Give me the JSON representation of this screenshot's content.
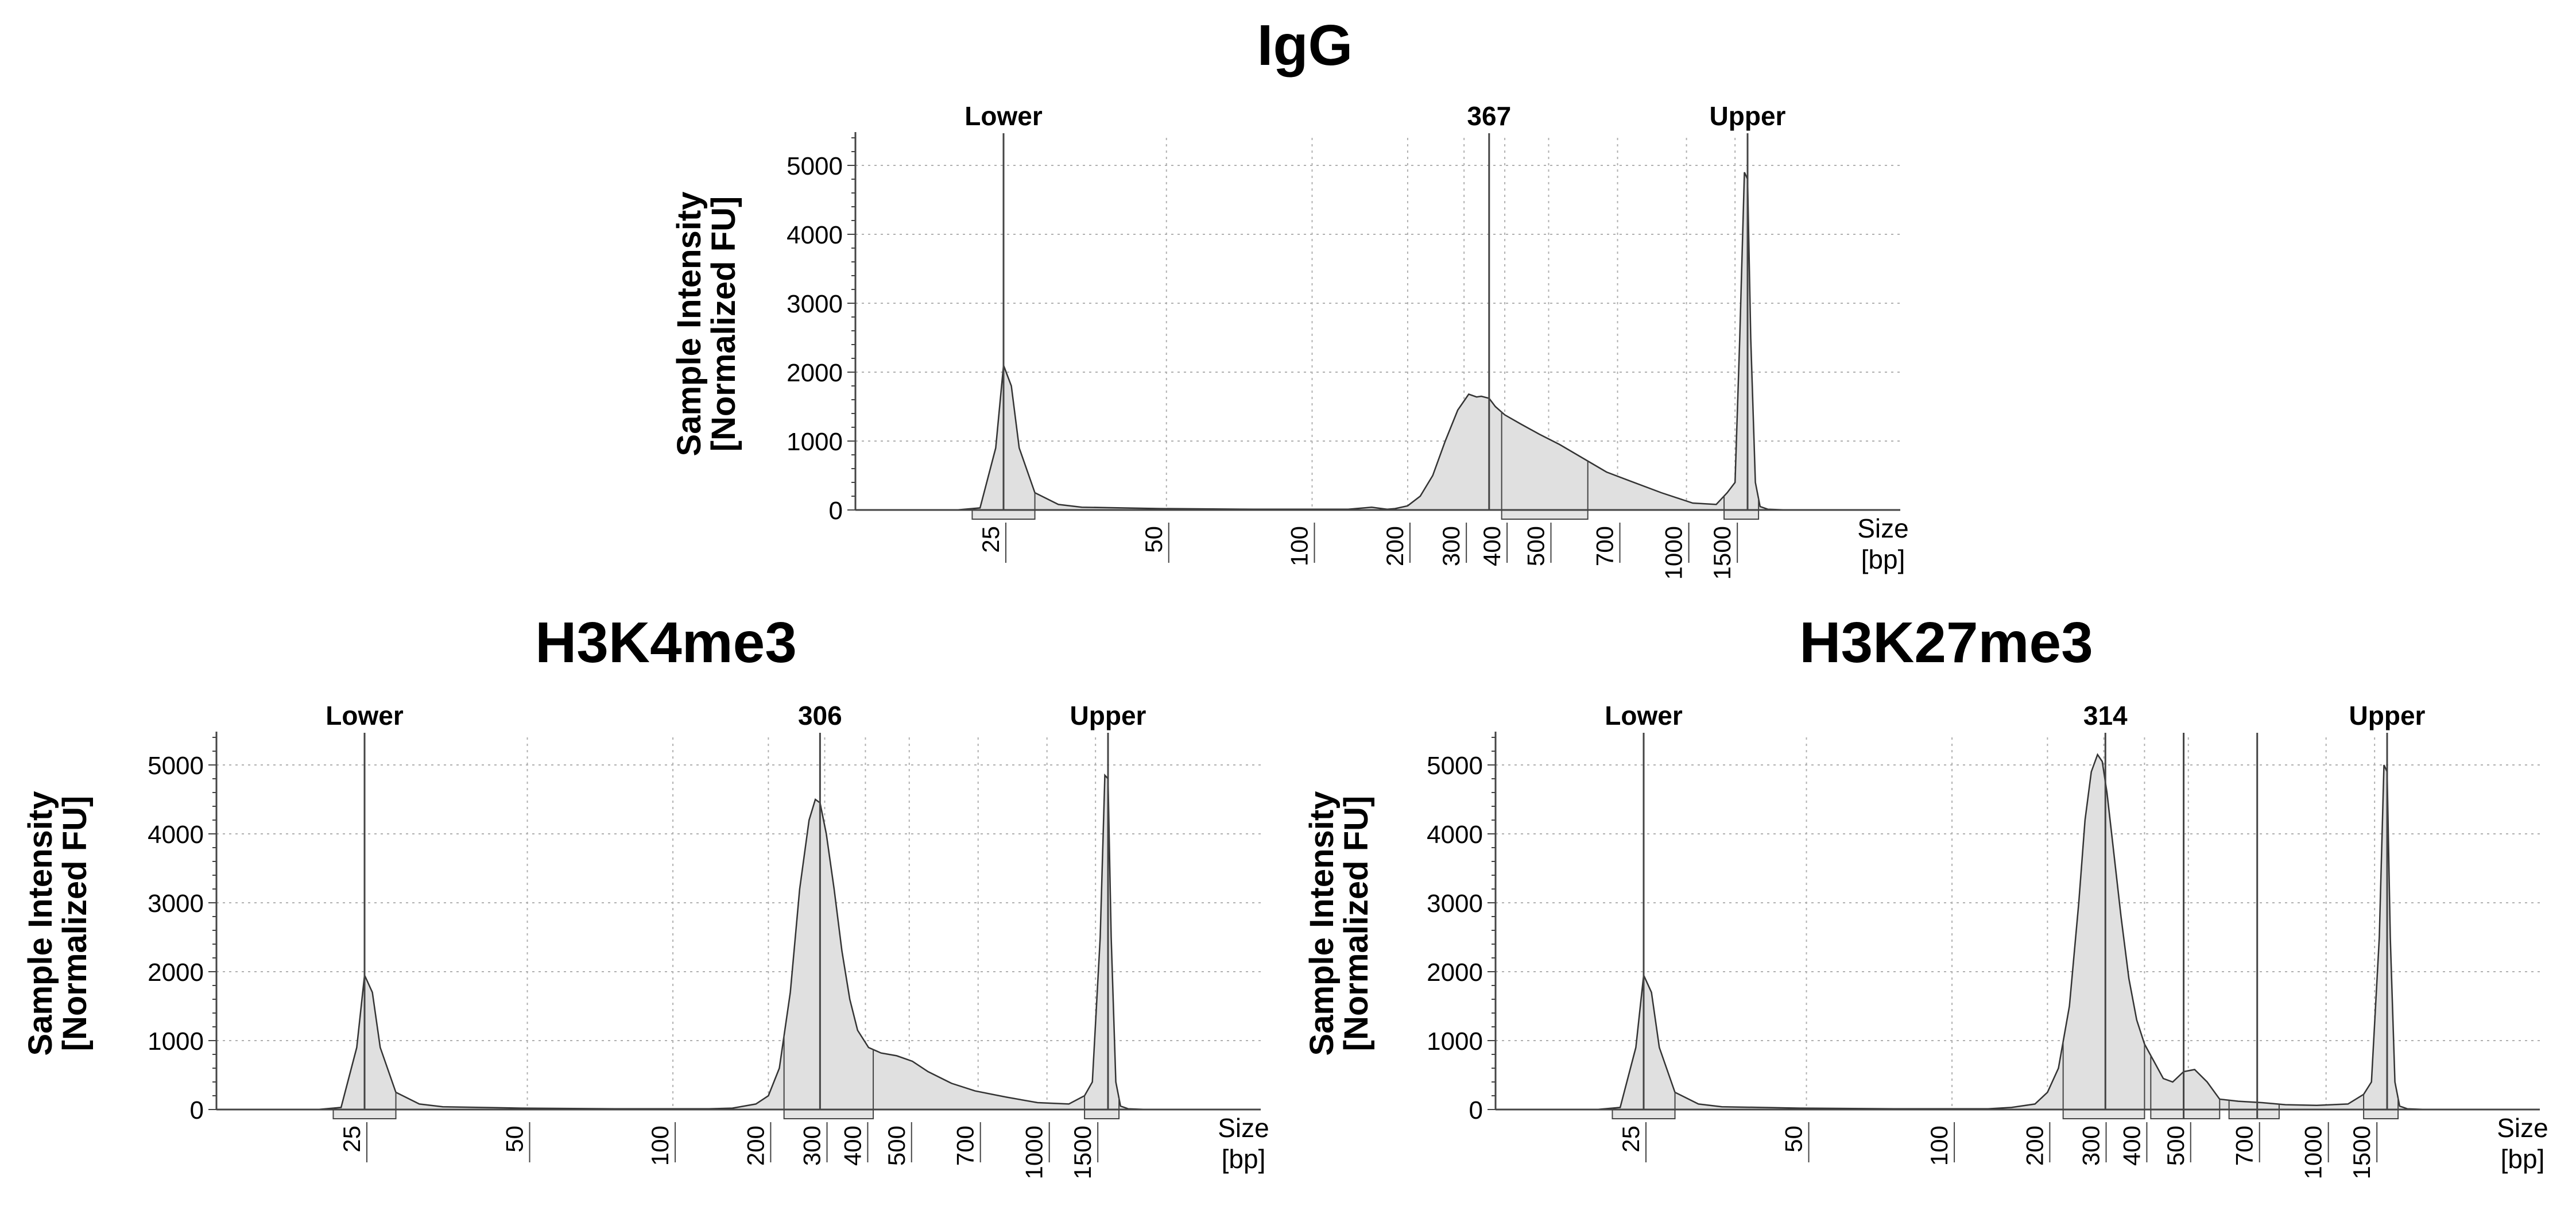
{
  "chart_data": [
    {
      "type": "area",
      "title": "IgG",
      "ylabel": [
        "Sample Intensity",
        "[Normalized FU]"
      ],
      "xlabel": [
        "Size",
        "[bp]"
      ],
      "ylim": [
        0,
        5400
      ],
      "yticks": [
        0,
        1000,
        2000,
        3000,
        4000,
        5000
      ],
      "xticks": [
        {
          "label": "25",
          "t": 0
        },
        {
          "label": "50",
          "t": 1.04
        },
        {
          "label": "100",
          "t": 1.97
        },
        {
          "label": "200",
          "t": 2.58
        },
        {
          "label": "300",
          "t": 2.94
        },
        {
          "label": "400",
          "t": 3.2
        },
        {
          "label": "500",
          "t": 3.48
        },
        {
          "label": "700",
          "t": 3.92
        },
        {
          "label": "1000",
          "t": 4.36
        },
        {
          "label": "1500",
          "t": 4.67
        }
      ],
      "peak_labels": [
        {
          "text": "Lower",
          "t": 0
        },
        {
          "text": "367",
          "t": 3.1
        },
        {
          "text": "Upper",
          "t": 4.75
        }
      ],
      "regions": [
        {
          "from": -0.2,
          "to": 0.2
        },
        {
          "from": 3.18,
          "to": 3.73
        },
        {
          "from": 4.6,
          "to": 4.82
        }
      ],
      "series": [
        {
          "x": [
            -0.8,
            -0.3,
            -0.15,
            -0.05,
            0,
            0.05,
            0.1,
            0.2,
            0.35,
            0.5,
            1.0,
            1.6,
            2.2,
            2.35,
            2.45,
            2.5,
            2.58,
            2.66,
            2.74,
            2.82,
            2.9,
            2.97,
            3.02,
            3.05,
            3.1,
            3.14,
            3.2,
            3.3,
            3.42,
            3.55,
            3.7,
            3.85,
            4.0,
            4.2,
            4.4,
            4.55,
            4.62,
            4.67,
            4.7,
            4.73,
            4.75,
            4.77,
            4.8,
            4.83,
            4.88,
            5.0,
            5.3
          ],
          "y": [
            0,
            0,
            30,
            900,
            2100,
            1800,
            900,
            250,
            80,
            40,
            20,
            10,
            10,
            40,
            10,
            20,
            60,
            200,
            500,
            1000,
            1450,
            1680,
            1640,
            1650,
            1620,
            1500,
            1380,
            1250,
            1100,
            950,
            750,
            550,
            420,
            250,
            100,
            80,
            250,
            400,
            2500,
            4900,
            4800,
            2500,
            400,
            50,
            10,
            0,
            0
          ]
        }
      ]
    },
    {
      "type": "area",
      "title": "H3K4me3",
      "ylabel": [
        "Sample Intensity",
        "[Normalized FU]"
      ],
      "xlabel": [
        "Size",
        "[bp]"
      ],
      "ylim": [
        0,
        5400
      ],
      "yticks": [
        0,
        1000,
        2000,
        3000,
        4000,
        5000
      ],
      "xticks": [
        {
          "label": "25",
          "t": 0
        },
        {
          "label": "50",
          "t": 1.04
        },
        {
          "label": "100",
          "t": 1.97
        },
        {
          "label": "200",
          "t": 2.58
        },
        {
          "label": "300",
          "t": 2.94
        },
        {
          "label": "400",
          "t": 3.2
        },
        {
          "label": "500",
          "t": 3.48
        },
        {
          "label": "700",
          "t": 3.92
        },
        {
          "label": "1000",
          "t": 4.36
        },
        {
          "label": "1500",
          "t": 4.67
        }
      ],
      "peak_labels": [
        {
          "text": "Lower",
          "t": 0
        },
        {
          "text": "306",
          "t": 2.91
        },
        {
          "text": "Upper",
          "t": 4.75
        }
      ],
      "regions": [
        {
          "from": -0.2,
          "to": 0.2
        },
        {
          "from": 2.68,
          "to": 3.25
        },
        {
          "from": 4.6,
          "to": 4.82
        }
      ],
      "series": [
        {
          "x": [
            -0.8,
            -0.3,
            -0.15,
            -0.05,
            0,
            0.05,
            0.1,
            0.2,
            0.35,
            0.5,
            1.0,
            1.6,
            2.2,
            2.35,
            2.5,
            2.58,
            2.65,
            2.72,
            2.78,
            2.84,
            2.88,
            2.91,
            2.95,
            3.0,
            3.05,
            3.1,
            3.15,
            3.22,
            3.3,
            3.4,
            3.5,
            3.6,
            3.75,
            3.9,
            4.1,
            4.3,
            4.5,
            4.6,
            4.65,
            4.7,
            4.73,
            4.75,
            4.77,
            4.8,
            4.83,
            4.88,
            5.0,
            5.3
          ],
          "y": [
            0,
            0,
            30,
            900,
            1950,
            1700,
            900,
            250,
            80,
            40,
            20,
            10,
            10,
            20,
            80,
            200,
            600,
            1700,
            3200,
            4200,
            4500,
            4450,
            4000,
            3200,
            2300,
            1600,
            1150,
            900,
            820,
            780,
            700,
            550,
            380,
            270,
            180,
            100,
            80,
            200,
            400,
            2500,
            4850,
            4800,
            2500,
            400,
            50,
            10,
            0,
            0
          ]
        }
      ]
    },
    {
      "type": "area",
      "title": "H3K27me3",
      "ylabel": [
        "Sample Intensity",
        "[Normalized FU]"
      ],
      "xlabel": [
        "Size",
        "[bp]"
      ],
      "ylim": [
        0,
        5400
      ],
      "yticks": [
        0,
        1000,
        2000,
        3000,
        4000,
        5000
      ],
      "xticks": [
        {
          "label": "25",
          "t": 0
        },
        {
          "label": "50",
          "t": 1.04
        },
        {
          "label": "100",
          "t": 1.97
        },
        {
          "label": "200",
          "t": 2.58
        },
        {
          "label": "300",
          "t": 2.94
        },
        {
          "label": "400",
          "t": 3.2
        },
        {
          "label": "500",
          "t": 3.48
        },
        {
          "label": "700",
          "t": 3.92
        },
        {
          "label": "1000",
          "t": 4.36
        },
        {
          "label": "1500",
          "t": 4.67
        }
      ],
      "peak_labels": [
        {
          "text": "Lower",
          "t": 0
        },
        {
          "text": "314",
          "t": 2.95
        },
        {
          "text": "Upper",
          "t": 4.75
        }
      ],
      "regions": [
        {
          "from": -0.2,
          "to": 0.2
        },
        {
          "from": 2.68,
          "to": 3.2
        },
        {
          "from": 3.24,
          "to": 3.68
        },
        {
          "from": 3.74,
          "to": 4.06
        },
        {
          "from": 4.6,
          "to": 4.82
        }
      ],
      "markers": [
        3.45,
        3.92
      ],
      "series": [
        {
          "x": [
            -0.8,
            -0.3,
            -0.15,
            -0.05,
            0,
            0.05,
            0.1,
            0.2,
            0.35,
            0.5,
            1.0,
            1.6,
            2.2,
            2.35,
            2.5,
            2.58,
            2.65,
            2.72,
            2.78,
            2.82,
            2.86,
            2.9,
            2.93,
            2.96,
            3.0,
            3.05,
            3.1,
            3.15,
            3.2,
            3.26,
            3.32,
            3.38,
            3.45,
            3.52,
            3.6,
            3.68,
            3.8,
            3.95,
            4.1,
            4.3,
            4.5,
            4.6,
            4.65,
            4.7,
            4.73,
            4.75,
            4.77,
            4.8,
            4.83,
            4.88,
            5.0,
            5.3
          ],
          "y": [
            0,
            0,
            30,
            900,
            1950,
            1700,
            900,
            250,
            80,
            40,
            20,
            10,
            10,
            30,
            80,
            250,
            600,
            1500,
            3000,
            4200,
            4900,
            5150,
            5050,
            4600,
            3800,
            2800,
            1900,
            1300,
            950,
            700,
            450,
            400,
            550,
            580,
            400,
            150,
            120,
            100,
            70,
            60,
            80,
            220,
            400,
            2500,
            5000,
            4900,
            2500,
            400,
            50,
            10,
            0,
            0
          ]
        }
      ]
    }
  ]
}
